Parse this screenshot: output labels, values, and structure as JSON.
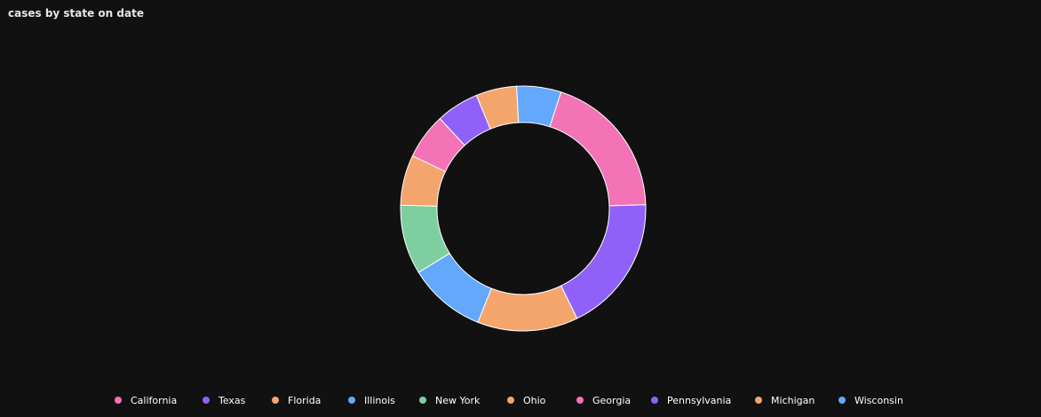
{
  "chart_data": {
    "type": "pie",
    "donut": true,
    "title": "cases by state on date",
    "categories": [
      "California",
      "Texas",
      "Florida",
      "Illinois",
      "New York",
      "Ohio",
      "Georgia",
      "Pennsylvania",
      "Michigan",
      "Wisconsin"
    ],
    "values": [
      20.0,
      18.7,
      13.6,
      10.5,
      9.4,
      6.8,
      6.2,
      5.8,
      5.5,
      6.0
    ],
    "colors": [
      "#f472b6",
      "#9061f9",
      "#f4a56c",
      "#64a8fd",
      "#7dcf9f",
      "#f4a56c",
      "#f472b6",
      "#9061f9",
      "#f4a56c",
      "#64a8fd"
    ],
    "legend_position": "bottom"
  }
}
